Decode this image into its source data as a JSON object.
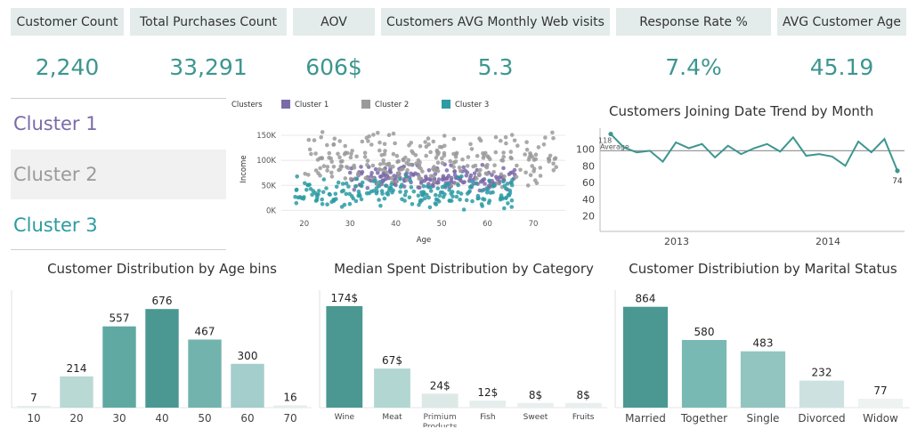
{
  "kpis": [
    {
      "label": "Customer Count",
      "value": "2,240"
    },
    {
      "label": "Total Purchases Count",
      "value": "33,291"
    },
    {
      "label": "AOV",
      "value": "606$"
    },
    {
      "label": "Customers AVG Monthly Web visits",
      "value": "5.3"
    },
    {
      "label": "Response Rate %",
      "value": "7.4%"
    },
    {
      "label": "AVG Customer Age",
      "value": "45.19"
    }
  ],
  "clusters": {
    "items": [
      {
        "label": "Cluster 1",
        "color": "#7b6aa8"
      },
      {
        "label": "Cluster 2",
        "color": "#9a9a9a"
      },
      {
        "label": "Cluster 3",
        "color": "#2c9ba3"
      }
    ]
  },
  "scatter": {
    "legend_title": "Clusters",
    "xlabel": "Age",
    "ylabel": "Income",
    "x_ticks": [
      "20",
      "30",
      "40",
      "50",
      "60",
      "70"
    ],
    "y_ticks": [
      "0K",
      "50K",
      "100K",
      "150K"
    ]
  },
  "trend": {
    "title": "Customers Joining Date Trend by Month",
    "first_label": "118",
    "reference_label": "Average",
    "last_label": "74",
    "y_ticks": [
      "20",
      "40",
      "60",
      "80",
      "100"
    ],
    "x_labels": [
      "2013",
      "2014"
    ]
  },
  "age_bins": {
    "title": "Customer Distribution by Age bins"
  },
  "category": {
    "title": "Median Spent Distribution by Category"
  },
  "marital": {
    "title": "Customer Distribiution by Marital Status"
  },
  "chart_data": [
    {
      "type": "scatter",
      "title": "",
      "xlabel": "Age",
      "ylabel": "Income",
      "xlim": [
        15,
        77
      ],
      "ylim": [
        -10000,
        175000
      ],
      "x_ticks": [
        20,
        30,
        40,
        50,
        60,
        70
      ],
      "y_ticks": [
        0,
        50000,
        100000,
        150000
      ],
      "legend": "top",
      "series": [
        {
          "name": "Cluster 1",
          "color": "#7b6aa8",
          "x_range": [
            30,
            66
          ],
          "y_range": [
            35000,
            95000
          ]
        },
        {
          "name": "Cluster 2",
          "color": "#9a9a9a",
          "x_range": [
            20,
            75
          ],
          "y_range": [
            40000,
            160000
          ]
        },
        {
          "name": "Cluster 3",
          "color": "#2c9ba3",
          "x_range": [
            18,
            66
          ],
          "y_range": [
            0,
            70000
          ]
        }
      ]
    },
    {
      "type": "line",
      "title": "Customers Joining Date Trend by Month",
      "x_labels": [
        "2013",
        "2014"
      ],
      "y_ticks": [
        20,
        40,
        60,
        80,
        100
      ],
      "ylim": [
        10,
        125
      ],
      "reference_line": {
        "label": "Average",
        "value": 98
      },
      "values": [
        118,
        102,
        96,
        98,
        85,
        108,
        101,
        106,
        90,
        104,
        94,
        101,
        106,
        97,
        114,
        92,
        94,
        91,
        80,
        109,
        96,
        112,
        74
      ]
    },
    {
      "type": "bar",
      "title": "Customer Distribution by Age bins",
      "categories": [
        "10",
        "20",
        "30",
        "40",
        "50",
        "60",
        "70"
      ],
      "values": [
        7,
        214,
        557,
        676,
        467,
        300,
        16
      ],
      "ylim": [
        0,
        720
      ]
    },
    {
      "type": "bar",
      "title": "Median Spent Distribution by Category",
      "categories": [
        "Wine",
        "Meat",
        "Primium Products",
        "Fish",
        "Sweet",
        "Fruits"
      ],
      "values": [
        174,
        67,
        24,
        12,
        8,
        8
      ],
      "data_labels": [
        "174$",
        "67$",
        "24$",
        "12$",
        "8$",
        "8$"
      ],
      "ylim": [
        0,
        180
      ]
    },
    {
      "type": "bar",
      "title": "Customer Distribiution by Marital Status",
      "categories": [
        "Married",
        "Together",
        "Single",
        "Divorced",
        "Widow"
      ],
      "values": [
        864,
        580,
        483,
        232,
        77
      ],
      "ylim": [
        0,
        900
      ]
    }
  ]
}
